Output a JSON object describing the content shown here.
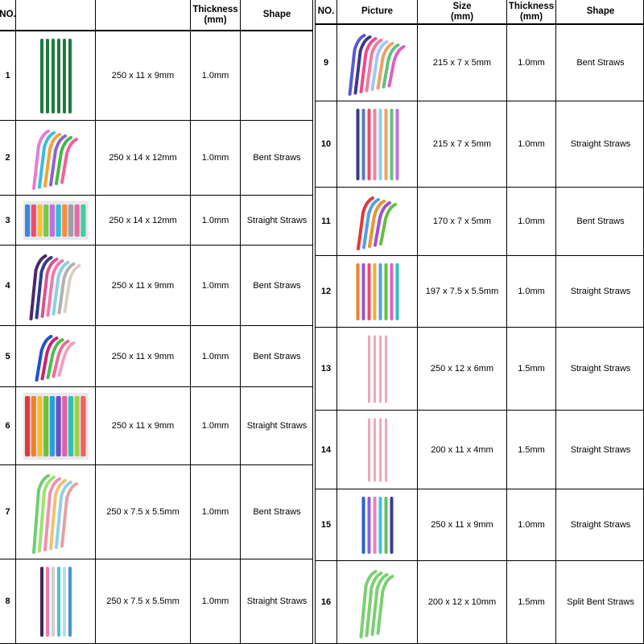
{
  "left_table": {
    "header": {
      "no": "NO.",
      "picture": "",
      "size": "",
      "thickness": "Thickness\n(mm)",
      "shape": "Shape"
    },
    "rows": [
      {
        "no": "1",
        "size": "250 x 11 x 9mm",
        "thickness": "1.0mm",
        "shape": "",
        "icon": "green-straight-straws-icon",
        "colors": [
          "#1d7a3a",
          "#1d7a3a",
          "#1d7a3a",
          "#1d7a3a",
          "#1d7a3a",
          "#1d7a3a"
        ]
      },
      {
        "no": "2",
        "size": "250 x 14 x 12mm",
        "thickness": "1.0mm",
        "shape": "Bent Straws",
        "icon": "bent-straws-icon",
        "colors": [
          "#e87ad8",
          "#35c0d8",
          "#f2a23a",
          "#8b62d0",
          "#41b84a",
          "#f0609a"
        ]
      },
      {
        "no": "3",
        "size": "250 x 14 x 12mm",
        "thickness": "1.0mm",
        "shape": "Straight Straws",
        "icon": "straight-straws-bundle-icon",
        "colors": [
          "#3a86e0",
          "#f04e6a",
          "#f6c23a",
          "#7ac943",
          "#c36ee0",
          "#2fbfd0",
          "#ff8a3d",
          "#9aa0a8",
          "#e86aa8",
          "#48c9a0"
        ]
      },
      {
        "no": "4",
        "size": "250 x 11 x 9mm",
        "thickness": "1.0mm",
        "shape": "Bent Straws",
        "icon": "bent-straws-icon",
        "colors": [
          "#4a2a6a",
          "#2c3e8a",
          "#e0508a",
          "#f07aa8",
          "#8ad0e0",
          "#b0b0b0",
          "#d8d0c8"
        ]
      },
      {
        "no": "5",
        "size": "250 x 11 x 9mm",
        "thickness": "1.0mm",
        "shape": "Bent Straws",
        "icon": "bent-straws-icon",
        "colors": [
          "#1e50d0",
          "#d02070",
          "#46c04a",
          "#f06a9a",
          "#f0a0c0"
        ]
      },
      {
        "no": "6",
        "size": "250 x 11 x 9mm",
        "thickness": "1.0mm",
        "shape": "Straight Straws",
        "icon": "straight-straws-bundle-icon",
        "colors": [
          "#e03a3a",
          "#f0802a",
          "#f0c030",
          "#6ac03a",
          "#2aa0d8",
          "#6a50c8",
          "#e060a8",
          "#30c0b0",
          "#a0d040",
          "#f06060"
        ]
      },
      {
        "no": "7",
        "size": "250 x 7.5 x 5.5mm",
        "thickness": "1.0mm",
        "shape": "Bent Straws",
        "icon": "bent-straws-icon",
        "colors": [
          "#6ad070",
          "#a0e070",
          "#f090b0",
          "#f0c070",
          "#90d0e8",
          "#e8a0a0"
        ]
      },
      {
        "no": "8",
        "size": "250 x 7.5 x 5.5mm",
        "thickness": "1.0mm",
        "shape": "Straight Straws",
        "icon": "straight-straws-icon",
        "colors": [
          "#3a2a5a",
          "#f07ab0",
          "#d0d0d0",
          "#50c0d0",
          "#b0e0e8",
          "#4a90d0"
        ]
      }
    ]
  },
  "right_table": {
    "header": {
      "no": "NO.",
      "picture": "Picture",
      "size": "Size\n(mm)",
      "thickness": "Thickness\n(mm)",
      "shape": "Shape"
    },
    "rows": [
      {
        "no": "9",
        "size": "215 x 7 x 5mm",
        "thickness": "1.0mm",
        "shape": "Bent Straws",
        "icon": "bent-straws-icon",
        "colors": [
          "#5a5ad0",
          "#3a3a8a",
          "#f04a8a",
          "#f07aa0",
          "#a0c8f0",
          "#f0a060",
          "#60c080",
          "#e060c0"
        ]
      },
      {
        "no": "10",
        "size": "215 x 7 x 5mm",
        "thickness": "1.0mm",
        "shape": "Straight Straws",
        "icon": "straight-straws-icon",
        "colors": [
          "#3a3a8a",
          "#5a7ad0",
          "#f04a6a",
          "#f080a0",
          "#8ad0f0",
          "#f0a060",
          "#60c080",
          "#c070e0"
        ]
      },
      {
        "no": "11",
        "size": "170 x 7 x 5mm",
        "thickness": "1.0mm",
        "shape": "Bent Straws",
        "icon": "bent-straws-icon",
        "colors": [
          "#e03a3a",
          "#50a0e0",
          "#f0902a",
          "#a050d0",
          "#60c040"
        ]
      },
      {
        "no": "12",
        "size": "197 x 7.5 x 5.5mm",
        "thickness": "1.0mm",
        "shape": "Straight Straws",
        "icon": "straight-straws-icon",
        "colors": [
          "#f0802a",
          "#a050d0",
          "#f04a6a",
          "#f0b030",
          "#50a0e0",
          "#60c040",
          "#e060c0",
          "#30c0b0"
        ]
      },
      {
        "no": "13",
        "size": "250 x 12 x 6mm",
        "thickness": "1.5mm",
        "shape": "Straight Straws",
        "icon": "pink-straight-straws-icon",
        "colors": [
          "#f0a8b8",
          "#f0a8b8",
          "#f0a8b8",
          "#f0a8b8"
        ]
      },
      {
        "no": "14",
        "size": "200 x 11 x 4mm",
        "thickness": "1.5mm",
        "shape": "Straight Straws",
        "icon": "pink-straight-straws-icon",
        "colors": [
          "#f0a8b8",
          "#f0a8b8",
          "#f0a8b8",
          "#f0a8b8"
        ]
      },
      {
        "no": "15",
        "size": "250 x 11 x 9mm",
        "thickness": "1.0mm",
        "shape": "Straight Straws",
        "icon": "straight-straws-icon",
        "colors": [
          "#2a60d0",
          "#8a60e0",
          "#f080b0",
          "#40c0e0",
          "#60c060",
          "#3a3a8a"
        ]
      },
      {
        "no": "16",
        "size": "200 x 12 x 10mm",
        "thickness": "1.5mm",
        "shape": "Split Bent Straws",
        "icon": "split-bent-straws-icon",
        "colors": [
          "#7ad070",
          "#7ad070",
          "#7ad070",
          "#7ad070"
        ]
      }
    ]
  }
}
